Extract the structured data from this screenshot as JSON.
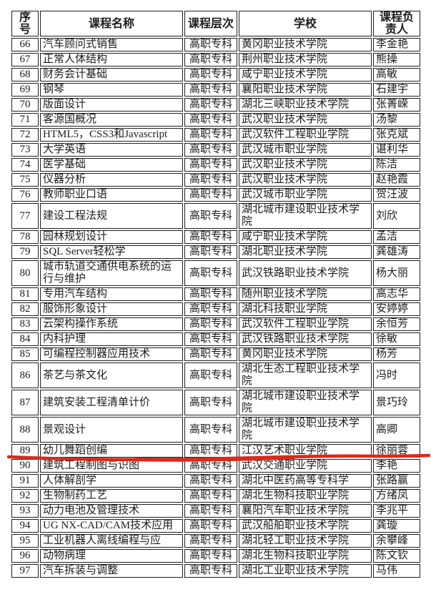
{
  "table": {
    "headers": [
      "序号",
      "课程名称",
      "课程层次",
      "学校",
      "课程负责人"
    ],
    "rows": [
      {
        "no": "66",
        "course": "汽车顾问式销售",
        "level": "高职专科",
        "school": "黄冈职业技术学院",
        "leader": "李金艳",
        "tall": false,
        "underlined": false
      },
      {
        "no": "67",
        "course": "正常人体结构",
        "level": "高职专科",
        "school": "荆州职业技术学院",
        "leader": "熊操",
        "tall": false,
        "underlined": false
      },
      {
        "no": "68",
        "course": "财务会计基础",
        "level": "高职专科",
        "school": "咸宁职业技术学院",
        "leader": "高敏",
        "tall": false,
        "underlined": false
      },
      {
        "no": "69",
        "course": "钢琴",
        "level": "高职专科",
        "school": "襄阳职业技术学院",
        "leader": "石建宇",
        "tall": false,
        "underlined": false
      },
      {
        "no": "70",
        "course": "版面设计",
        "level": "高职专科",
        "school": "湖北三峡职业技术学院",
        "leader": "张菁嵘",
        "tall": false,
        "underlined": false
      },
      {
        "no": "71",
        "course": "客源国概况",
        "level": "高职专科",
        "school": "武汉职业技术学院",
        "leader": "汤黎",
        "tall": false,
        "underlined": false
      },
      {
        "no": "72",
        "course": "HTML5，CSS3和Javascript",
        "level": "高职专科",
        "school": "武汉软件工程职业学院",
        "leader": "张克斌",
        "tall": false,
        "underlined": false
      },
      {
        "no": "73",
        "course": "大学英语",
        "level": "高职专科",
        "school": "武汉城市职业学院",
        "leader": "谌利华",
        "tall": false,
        "underlined": false
      },
      {
        "no": "74",
        "course": "医学基础",
        "level": "高职专科",
        "school": "武汉职业技术学院",
        "leader": "陈洁",
        "tall": false,
        "underlined": false
      },
      {
        "no": "75",
        "course": "仪器分析",
        "level": "高职专科",
        "school": "武汉职业技术学院",
        "leader": "赵艳霞",
        "tall": false,
        "underlined": false
      },
      {
        "no": "76",
        "course": "教师职业口语",
        "level": "高职专科",
        "school": "武汉城市职业学院",
        "leader": "贺汪波",
        "tall": false,
        "underlined": false
      },
      {
        "no": "77",
        "course": "建设工程法规",
        "level": "高职专科",
        "school": "湖北城市建设职业技术学院",
        "leader": "刘欣",
        "tall": true,
        "underlined": false
      },
      {
        "no": "78",
        "course": "园林规划设计",
        "level": "高职专科",
        "school": "咸宁职业技术学院",
        "leader": "孟洁",
        "tall": false,
        "underlined": false
      },
      {
        "no": "79",
        "course": "SQL Server轻松学",
        "level": "高职专科",
        "school": "湖北职业技术学院",
        "leader": "龚雄涛",
        "tall": false,
        "underlined": false
      },
      {
        "no": "80",
        "course": "城市轨道交通供电系统的运行与维护",
        "level": "高职专科",
        "school": "武汉铁路职业技术学院",
        "leader": "杨大丽",
        "tall": true,
        "underlined": false
      },
      {
        "no": "81",
        "course": "专用汽车结构",
        "level": "高职专科",
        "school": "随州职业技术学院",
        "leader": "高志华",
        "tall": false,
        "underlined": false
      },
      {
        "no": "82",
        "course": "服饰形象设计",
        "level": "高职专科",
        "school": "湖北科技职业学院",
        "leader": "安婷婷",
        "tall": false,
        "underlined": false
      },
      {
        "no": "83",
        "course": "云架构操作系统",
        "level": "高职专科",
        "school": "武汉软件工程职业学院",
        "leader": "余恒芳",
        "tall": false,
        "underlined": false
      },
      {
        "no": "84",
        "course": "内科护理",
        "level": "高职专科",
        "school": "武汉铁路职业技术学院",
        "leader": "徐敏",
        "tall": false,
        "underlined": false
      },
      {
        "no": "85",
        "course": "可编程控制器应用技术",
        "level": "高职专科",
        "school": "黄冈职业技术学院",
        "leader": "杨芳",
        "tall": false,
        "underlined": false
      },
      {
        "no": "86",
        "course": "茶艺与茶文化",
        "level": "高职专科",
        "school": "湖北生态工程职业技术学院",
        "leader": "冯时",
        "tall": true,
        "underlined": false
      },
      {
        "no": "87",
        "course": "建筑安装工程清单计价",
        "level": "高职专科",
        "school": "湖北城市建设职业技术学院",
        "leader": "景巧玲",
        "tall": true,
        "underlined": false
      },
      {
        "no": "88",
        "course": "景观设计",
        "level": "高职专科",
        "school": "湖北城市建设职业技术学院",
        "leader": "高卿",
        "tall": true,
        "underlined": false
      },
      {
        "no": "89",
        "course": "幼儿舞蹈创编",
        "level": "高职专科",
        "school": "江汉艺术职业学院",
        "leader": "徐丽蓉",
        "tall": false,
        "underlined": true
      },
      {
        "no": "90",
        "course": "建筑工程制图与识图",
        "level": "高职专科",
        "school": "武汉交通职业学院",
        "leader": "李艳",
        "tall": false,
        "underlined": false
      },
      {
        "no": "91",
        "course": "人体解剖学",
        "level": "高职专科",
        "school": "湖北中医药高等专科学",
        "leader": "张路赢",
        "tall": false,
        "underlined": false
      },
      {
        "no": "92",
        "course": "生物制药工艺",
        "level": "高职专科",
        "school": "湖北生物科技职业学院",
        "leader": "方绪凤",
        "tall": false,
        "underlined": false
      },
      {
        "no": "93",
        "course": "动力电池及管理技术",
        "level": "高职专科",
        "school": "襄阳汽车职业技术学院",
        "leader": "李兆平",
        "tall": false,
        "underlined": false
      },
      {
        "no": "94",
        "course": "UG NX-CAD/CAM技术应用",
        "level": "高职专科",
        "school": "武汉船舶职业技术学院",
        "leader": "龚璇",
        "tall": false,
        "underlined": false
      },
      {
        "no": "95",
        "course": "工业机器人离线编程与应",
        "level": "高职专科",
        "school": "湖北轻工职业技术学院",
        "leader": "余攀峰",
        "tall": false,
        "underlined": false
      },
      {
        "no": "96",
        "course": "动物病理",
        "level": "高职专科",
        "school": "湖北生物科技职业学院",
        "leader": "陈文钦",
        "tall": false,
        "underlined": false
      },
      {
        "no": "97",
        "course": "汽车拆装与调整",
        "level": "高职专科",
        "school": "湖北工业职业技术学院",
        "leader": "马伟",
        "tall": false,
        "underlined": false
      }
    ]
  },
  "annotation": {
    "underlined_row_no": "89",
    "line_color": "#d92b1d"
  }
}
